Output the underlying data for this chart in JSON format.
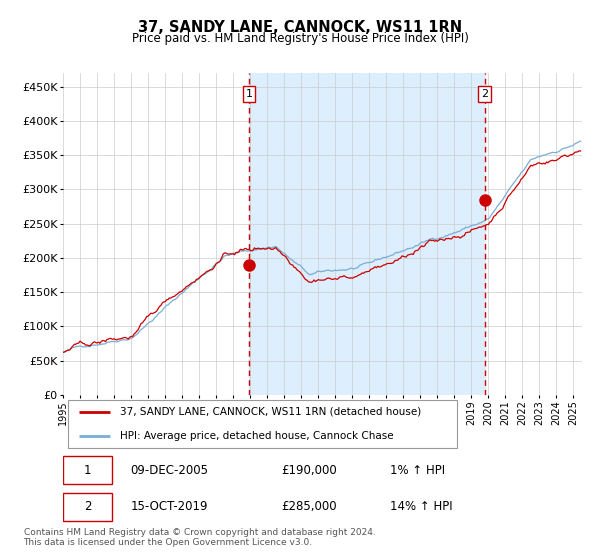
{
  "title": "37, SANDY LANE, CANNOCK, WS11 1RN",
  "subtitle": "Price paid vs. HM Land Registry's House Price Index (HPI)",
  "ylim": [
    0,
    470000
  ],
  "yticks": [
    0,
    50000,
    100000,
    150000,
    200000,
    250000,
    300000,
    350000,
    400000,
    450000
  ],
  "xlim_start": 1995.0,
  "xlim_end": 2025.5,
  "sale1_date": 2005.94,
  "sale1_price": 190000,
  "sale2_date": 2019.79,
  "sale2_price": 285000,
  "shade_start": 2005.94,
  "shade_end": 2019.79,
  "hpi_line_color": "#7aaed6",
  "price_line_color": "#cc0000",
  "sale_dot_color": "#cc0000",
  "vline_color": "#cc0000",
  "shade_color": "#ddeeff",
  "background_color": "#ffffff",
  "grid_color": "#cccccc",
  "legend_label_red": "37, SANDY LANE, CANNOCK, WS11 1RN (detached house)",
  "legend_label_blue": "HPI: Average price, detached house, Cannock Chase",
  "annotation1_date": "09-DEC-2005",
  "annotation1_price": "£190,000",
  "annotation1_hpi": "1% ↑ HPI",
  "annotation2_date": "15-OCT-2019",
  "annotation2_price": "£285,000",
  "annotation2_hpi": "14% ↑ HPI",
  "footer": "Contains HM Land Registry data © Crown copyright and database right 2024.\nThis data is licensed under the Open Government Licence v3.0."
}
